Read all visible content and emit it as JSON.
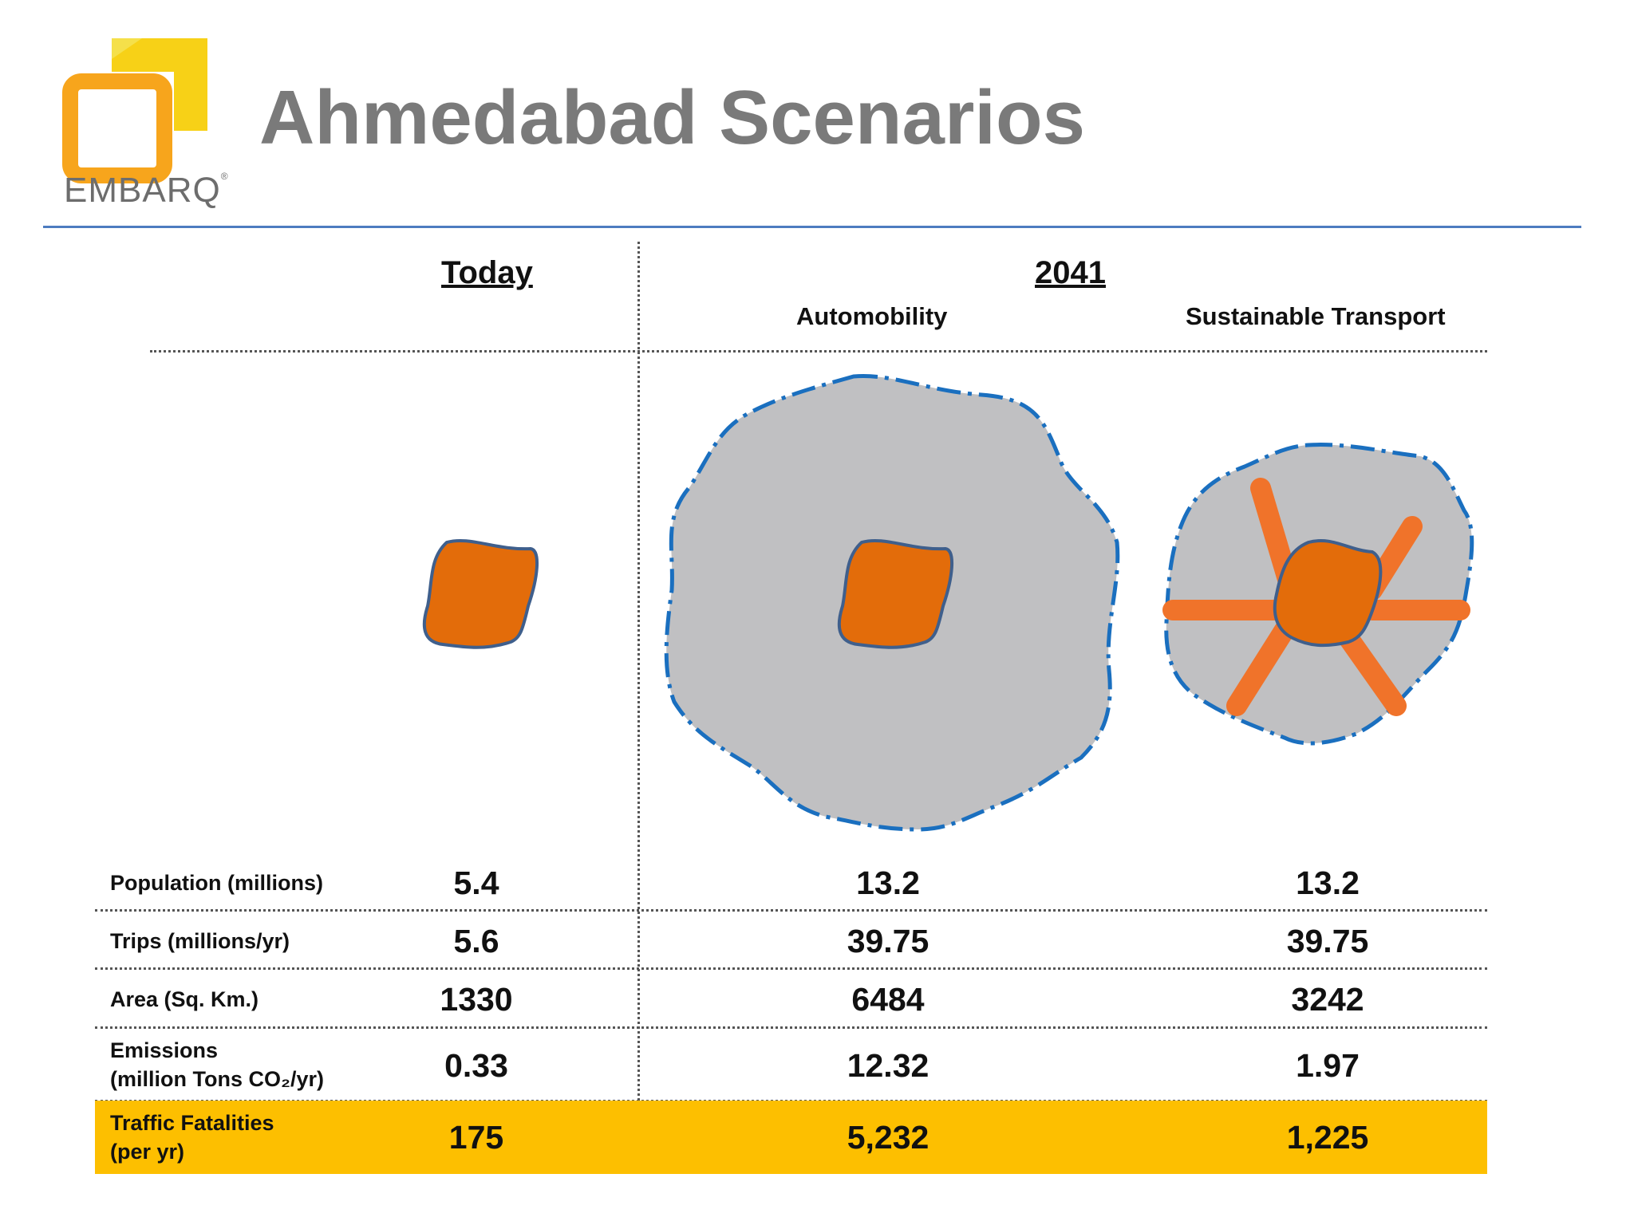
{
  "slide": {
    "title": "Ahmedabad Scenarios",
    "brand": "EMBARQ",
    "brand_mark": "®"
  },
  "columns": {
    "today": "Today",
    "future": "2041",
    "automobility": "Automobility",
    "sustainable": "Sustainable Transport"
  },
  "rows": [
    {
      "label": "Population (millions)",
      "label_line2": "",
      "today": "5.4",
      "automobility": "13.2",
      "sustainable": "13.2"
    },
    {
      "label": "Trips (millions/yr)",
      "label_line2": "",
      "today": "5.6",
      "automobility": "39.75",
      "sustainable": "39.75"
    },
    {
      "label": "Area (Sq. Km.)",
      "label_line2": "",
      "today": "1330",
      "automobility": "6484",
      "sustainable": "3242"
    },
    {
      "label": "Emissions",
      "label_line2": "(million Tons CO₂/yr)",
      "today": "0.33",
      "automobility": "12.32",
      "sustainable": "1.97"
    },
    {
      "label": "Traffic Fatalities",
      "label_line2": "(per yr)",
      "today": "175",
      "automobility": "5,232",
      "sustainable": "1,225"
    }
  ],
  "colors": {
    "title": "#7a7a7a",
    "accent_rule": "#4d7cc0",
    "highlight": "#fdbf00",
    "urban_core": "#e36c0a",
    "sprawl": "#c0c0c2",
    "boundary": "#1a6fbf",
    "transit_corridor": "#f0732a"
  }
}
